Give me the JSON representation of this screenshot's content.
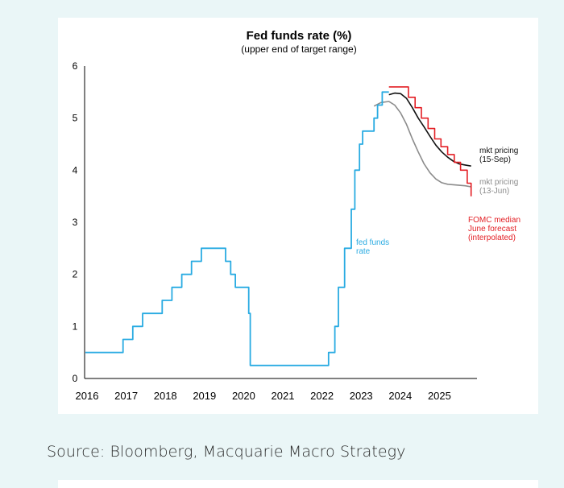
{
  "caption": {
    "source": "Source: Bloomberg, Macquarie Macro Strategy"
  },
  "chart_data": {
    "type": "line",
    "title": "Fed funds rate (%)",
    "subtitle": "(upper end of target range)",
    "xlabel": "",
    "ylabel": "",
    "ylim": [
      0,
      6
    ],
    "xlim": [
      2016,
      2026
    ],
    "yticks": [
      "0",
      "1",
      "2",
      "3",
      "4",
      "5",
      "6"
    ],
    "xticks": [
      "2016",
      "2017",
      "2018",
      "2019",
      "2020",
      "2021",
      "2022",
      "2023",
      "2024",
      "2025"
    ],
    "grid": false,
    "legend": "inline labels",
    "series": [
      {
        "name": "fed funds rate",
        "label_lines": [
          "fed funds",
          "rate"
        ],
        "color": "#29abe2",
        "step": true,
        "x": [
          2016.0,
          2016.96,
          2017.21,
          2017.46,
          2017.96,
          2018.21,
          2018.46,
          2018.71,
          2018.96,
          2019.58,
          2019.71,
          2019.83,
          2020.17,
          2020.21,
          2022.21,
          2022.37,
          2022.46,
          2022.62,
          2022.79,
          2022.88,
          2023.0,
          2023.08,
          2023.37,
          2023.46,
          2023.58,
          2023.75
        ],
        "y": [
          0.5,
          0.75,
          1.0,
          1.25,
          1.5,
          1.75,
          2.0,
          2.25,
          2.5,
          2.25,
          2.0,
          1.75,
          1.25,
          0.25,
          0.5,
          1.0,
          1.75,
          2.5,
          3.25,
          4.0,
          4.5,
          4.75,
          5.0,
          5.25,
          5.5,
          5.5
        ]
      },
      {
        "name": "mkt pricing (15-Sep)",
        "label_lines": [
          "mkt pricing",
          "(15-Sep)"
        ],
        "color": "#111111",
        "step": false,
        "x": [
          2023.75,
          2023.9,
          2024.05,
          2024.2,
          2024.35,
          2024.5,
          2024.65,
          2024.8,
          2024.95,
          2025.1,
          2025.25,
          2025.4,
          2025.55,
          2025.7,
          2025.85
        ],
        "y": [
          5.45,
          5.48,
          5.47,
          5.38,
          5.2,
          5.0,
          4.83,
          4.65,
          4.48,
          4.35,
          4.25,
          4.17,
          4.12,
          4.1,
          4.08
        ]
      },
      {
        "name": "mkt pricing (13-Jun)",
        "label_lines": [
          "mkt pricing",
          "(13-Jun)"
        ],
        "color": "#8c8c8c",
        "step": false,
        "x": [
          2023.37,
          2023.55,
          2023.75,
          2023.9,
          2024.05,
          2024.2,
          2024.35,
          2024.5,
          2024.65,
          2024.8,
          2024.95,
          2025.1,
          2025.25,
          2025.4,
          2025.55,
          2025.7,
          2025.85
        ],
        "y": [
          5.23,
          5.3,
          5.32,
          5.25,
          5.1,
          4.88,
          4.6,
          4.35,
          4.12,
          3.95,
          3.83,
          3.76,
          3.73,
          3.72,
          3.71,
          3.7,
          3.68
        ]
      },
      {
        "name": "FOMC median June forecast (interpolated)",
        "label_lines": [
          "FOMC median",
          "June forecast",
          "(interpolated)"
        ],
        "color": "#e31e24",
        "step": true,
        "x": [
          2023.75,
          2023.92,
          2024.25,
          2024.42,
          2024.58,
          2024.75,
          2024.92,
          2025.08,
          2025.25,
          2025.42,
          2025.58,
          2025.75,
          2025.85
        ],
        "y": [
          5.6,
          5.6,
          5.4,
          5.2,
          5.0,
          4.8,
          4.6,
          4.45,
          4.3,
          4.15,
          4.0,
          3.75,
          3.5
        ]
      }
    ]
  }
}
